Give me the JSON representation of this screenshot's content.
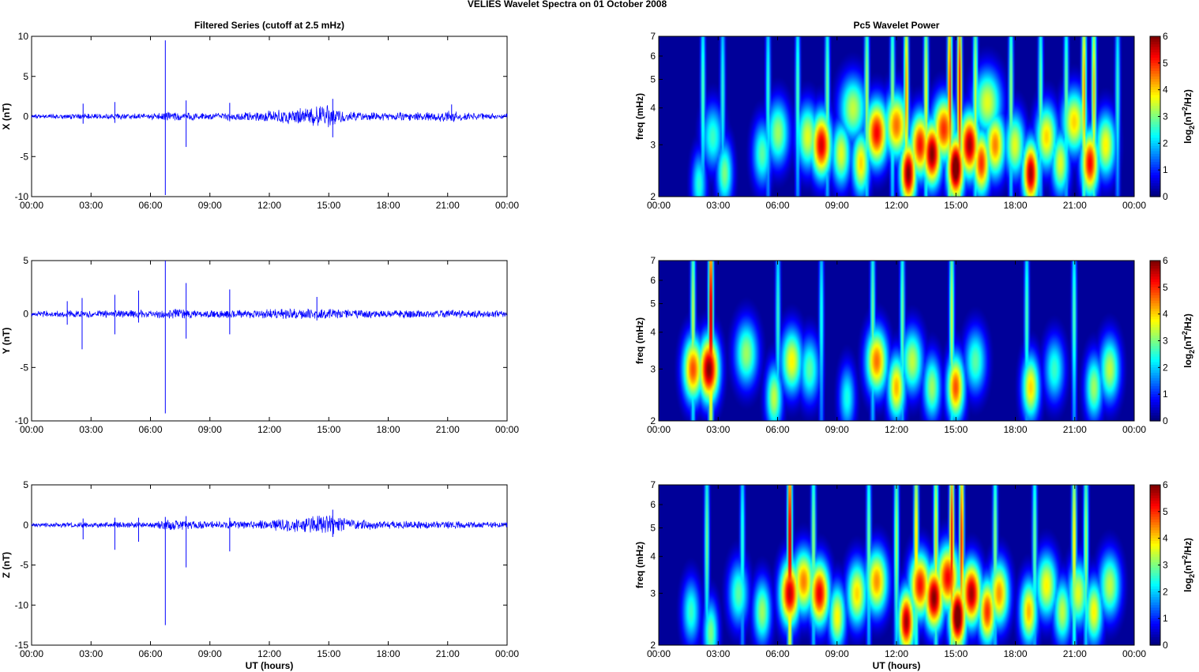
{
  "figure_title": "VELIES Wavelet Spectra on 01 October   2008",
  "chart_data": [
    {
      "type": "line",
      "panel": "filtered-x",
      "title": "Filtered Series (cutoff at 2.5 mHz)",
      "xlabel": "",
      "ylabel": "X (nT)",
      "xlim": [
        0,
        24
      ],
      "ylim": [
        -10,
        10
      ],
      "yticks": [
        -10,
        -5,
        0,
        5,
        10
      ],
      "xticklabels": [
        "00:00",
        "03:00",
        "06:00",
        "09:00",
        "12:00",
        "15:00",
        "18:00",
        "21:00",
        "00:00"
      ],
      "series_color": "#0000ff",
      "envelope": [
        [
          0,
          0.3
        ],
        [
          2,
          0.35
        ],
        [
          4,
          0.35
        ],
        [
          6,
          0.4
        ],
        [
          7,
          0.6
        ],
        [
          8,
          0.5
        ],
        [
          9,
          0.4
        ],
        [
          10,
          0.5
        ],
        [
          11,
          0.6
        ],
        [
          12,
          0.8
        ],
        [
          13,
          1.0
        ],
        [
          14,
          1.1
        ],
        [
          15,
          1.6
        ],
        [
          15.5,
          1.0
        ],
        [
          16,
          0.6
        ],
        [
          18,
          0.5
        ],
        [
          20,
          0.6
        ],
        [
          21,
          0.8
        ],
        [
          22,
          0.5
        ],
        [
          24,
          0.4
        ]
      ],
      "spikes": [
        [
          2.6,
          1.6,
          -0.9
        ],
        [
          4.2,
          1.8,
          -0.8
        ],
        [
          6.75,
          9.5,
          -9.8
        ],
        [
          7.8,
          2.0,
          -3.8
        ],
        [
          10.0,
          1.7,
          -0.6
        ],
        [
          15.2,
          2.2,
          -2.6
        ],
        [
          21.2,
          1.5,
          -0.5
        ]
      ]
    },
    {
      "type": "line",
      "panel": "filtered-y",
      "title": "",
      "xlabel": "",
      "ylabel": "Y (nT)",
      "xlim": [
        0,
        24
      ],
      "ylim": [
        -10,
        5
      ],
      "yticks": [
        -10,
        -5,
        0,
        5
      ],
      "xticklabels": [
        "00:00",
        "03:00",
        "06:00",
        "09:00",
        "12:00",
        "15:00",
        "18:00",
        "21:00",
        "00:00"
      ],
      "series_color": "#0000ff",
      "envelope": [
        [
          0,
          0.25
        ],
        [
          2,
          0.4
        ],
        [
          3,
          0.35
        ],
        [
          6,
          0.4
        ],
        [
          7,
          0.5
        ],
        [
          9,
          0.35
        ],
        [
          11,
          0.45
        ],
        [
          13,
          0.5
        ],
        [
          15,
          0.5
        ],
        [
          18,
          0.35
        ],
        [
          21,
          0.4
        ],
        [
          24,
          0.3
        ]
      ],
      "spikes": [
        [
          1.8,
          1.2,
          -1.0
        ],
        [
          2.55,
          1.5,
          -3.3
        ],
        [
          4.2,
          1.8,
          -1.9
        ],
        [
          5.4,
          2.2,
          -0.8
        ],
        [
          6.75,
          5.0,
          -9.3
        ],
        [
          7.8,
          2.9,
          -2.3
        ],
        [
          10.0,
          2.3,
          -1.9
        ],
        [
          14.4,
          1.6,
          -0.6
        ]
      ]
    },
    {
      "type": "line",
      "panel": "filtered-z",
      "title": "",
      "xlabel": "UT (hours)",
      "ylabel": "Z (nT)",
      "xlim": [
        0,
        24
      ],
      "ylim": [
        -15,
        5
      ],
      "yticks": [
        -15,
        -10,
        -5,
        0,
        5
      ],
      "xticklabels": [
        "00:00",
        "03:00",
        "06:00",
        "09:00",
        "12:00",
        "15:00",
        "18:00",
        "21:00",
        "00:00"
      ],
      "series_color": "#0000ff",
      "envelope": [
        [
          0,
          0.3
        ],
        [
          3,
          0.35
        ],
        [
          6,
          0.4
        ],
        [
          7,
          0.7
        ],
        [
          9,
          0.5
        ],
        [
          11,
          0.5
        ],
        [
          12,
          0.7
        ],
        [
          13,
          0.9
        ],
        [
          14,
          1.0
        ],
        [
          15,
          1.6
        ],
        [
          16,
          0.8
        ],
        [
          18,
          0.5
        ],
        [
          21,
          0.5
        ],
        [
          24,
          0.35
        ]
      ],
      "spikes": [
        [
          2.6,
          0.8,
          -1.8
        ],
        [
          4.2,
          0.9,
          -3.1
        ],
        [
          5.4,
          0.9,
          -2.1
        ],
        [
          6.75,
          1.0,
          -12.5
        ],
        [
          7.8,
          1.1,
          -5.3
        ],
        [
          10.0,
          0.9,
          -3.3
        ],
        [
          15.2,
          1.9,
          -1.5
        ]
      ]
    },
    {
      "type": "heatmap",
      "panel": "wavelet-x",
      "title": "Pc5 Wavelet Power",
      "xlabel": "",
      "ylabel": "freq (mHz)",
      "xlim": [
        0,
        24
      ],
      "ylim": [
        2,
        7
      ],
      "yscale": "log",
      "yticks": [
        2,
        3,
        4,
        5,
        6,
        7
      ],
      "xticklabels": [
        "00:00",
        "03:00",
        "06:00",
        "09:00",
        "12:00",
        "15:00",
        "18:00",
        "21:00",
        "00:00"
      ],
      "colorbar_label": "log2(nT2/Hz)",
      "colorbar_ticks": [
        0,
        1,
        2,
        3,
        4,
        5,
        6
      ],
      "clim": [
        0,
        6
      ],
      "colormap": "jet",
      "blobs": [
        [
          2.0,
          2.2,
          2.5
        ],
        [
          3.3,
          2.4,
          3.0
        ],
        [
          5.2,
          2.8,
          2.8
        ],
        [
          6.0,
          3.3,
          3.2
        ],
        [
          7.5,
          3.2,
          3.6
        ],
        [
          8.2,
          3.0,
          5.5
        ],
        [
          9.2,
          2.8,
          3.6
        ],
        [
          10.2,
          2.6,
          4.0
        ],
        [
          11.0,
          3.3,
          5.3
        ],
        [
          12.0,
          3.5,
          4.6
        ],
        [
          12.6,
          2.4,
          6.0
        ],
        [
          13.2,
          3.0,
          5.2
        ],
        [
          13.8,
          2.8,
          6.0
        ],
        [
          14.4,
          3.4,
          5.0
        ],
        [
          15.0,
          2.5,
          6.5
        ],
        [
          15.7,
          3.0,
          5.8
        ],
        [
          16.3,
          2.6,
          5.0
        ],
        [
          17.0,
          3.0,
          4.5
        ],
        [
          18.0,
          3.0,
          3.6
        ],
        [
          18.8,
          2.4,
          5.8
        ],
        [
          19.6,
          3.2,
          4.0
        ],
        [
          20.3,
          2.6,
          3.6
        ],
        [
          21.0,
          3.6,
          4.0
        ],
        [
          21.8,
          2.6,
          5.3
        ],
        [
          22.6,
          3.0,
          3.8
        ],
        [
          2.7,
          3.2,
          2.6
        ],
        [
          9.8,
          4.0,
          3.4
        ],
        [
          16.6,
          4.2,
          3.6
        ]
      ],
      "streaks": [
        [
          2.2,
          2.8
        ],
        [
          3.2,
          2.5
        ],
        [
          5.5,
          2.6
        ],
        [
          7.0,
          2.8
        ],
        [
          8.5,
          3.0
        ],
        [
          10.5,
          3.4
        ],
        [
          11.8,
          3.2
        ],
        [
          12.5,
          4.5
        ],
        [
          13.5,
          3.8
        ],
        [
          14.7,
          5.2
        ],
        [
          15.2,
          5.5
        ],
        [
          16.0,
          3.6
        ],
        [
          17.8,
          3.2
        ],
        [
          19.3,
          3.0
        ],
        [
          20.6,
          3.0
        ],
        [
          21.5,
          4.5
        ],
        [
          22.0,
          4.2
        ],
        [
          23.2,
          2.6
        ]
      ]
    },
    {
      "type": "heatmap",
      "panel": "wavelet-y",
      "title": "",
      "xlabel": "",
      "ylabel": "freq (mHz)",
      "xlim": [
        0,
        24
      ],
      "ylim": [
        2,
        7
      ],
      "yscale": "log",
      "yticks": [
        2,
        3,
        4,
        5,
        6,
        7
      ],
      "xticklabels": [
        "00:00",
        "03:00",
        "06:00",
        "09:00",
        "12:00",
        "15:00",
        "18:00",
        "21:00",
        "00:00"
      ],
      "colorbar_label": "log2(nT2/Hz)",
      "colorbar_ticks": [
        0,
        1,
        2,
        3,
        4,
        5,
        6
      ],
      "clim": [
        0,
        6
      ],
      "colormap": "jet",
      "blobs": [
        [
          1.7,
          3.0,
          4.8
        ],
        [
          2.5,
          3.0,
          6.0
        ],
        [
          4.4,
          3.4,
          3.2
        ],
        [
          5.8,
          2.4,
          3.4
        ],
        [
          6.7,
          3.2,
          3.8
        ],
        [
          7.6,
          3.0,
          2.8
        ],
        [
          9.5,
          2.4,
          2.4
        ],
        [
          11.0,
          3.2,
          4.6
        ],
        [
          12.0,
          2.6,
          4.2
        ],
        [
          12.8,
          3.2,
          3.4
        ],
        [
          13.8,
          2.6,
          3.2
        ],
        [
          15.0,
          2.6,
          4.8
        ],
        [
          16.0,
          3.2,
          2.8
        ],
        [
          18.8,
          2.6,
          4.0
        ],
        [
          20.0,
          3.0,
          2.6
        ],
        [
          22.0,
          2.6,
          3.2
        ],
        [
          22.8,
          3.0,
          3.4
        ]
      ],
      "streaks": [
        [
          1.7,
          3.5
        ],
        [
          2.6,
          6.0
        ],
        [
          6.0,
          2.6
        ],
        [
          8.2,
          2.5
        ],
        [
          10.8,
          3.0
        ],
        [
          12.3,
          3.0
        ],
        [
          14.8,
          3.6
        ],
        [
          18.6,
          2.8
        ],
        [
          21.0,
          2.8
        ]
      ]
    },
    {
      "type": "heatmap",
      "panel": "wavelet-z",
      "title": "",
      "xlabel": "UT (hours)",
      "ylabel": "freq (mHz)",
      "xlim": [
        0,
        24
      ],
      "ylim": [
        2,
        7
      ],
      "yscale": "log",
      "yticks": [
        2,
        3,
        4,
        5,
        6,
        7
      ],
      "xticklabels": [
        "00:00",
        "03:00",
        "06:00",
        "09:00",
        "12:00",
        "15:00",
        "18:00",
        "21:00",
        "00:00"
      ],
      "colorbar_label": "log2(nT2/Hz)",
      "colorbar_ticks": [
        0,
        1,
        2,
        3,
        4,
        5,
        6
      ],
      "clim": [
        0,
        6
      ],
      "colormap": "jet",
      "blobs": [
        [
          1.6,
          2.6,
          2.6
        ],
        [
          2.6,
          2.2,
          3.0
        ],
        [
          4.0,
          3.0,
          2.8
        ],
        [
          5.2,
          2.6,
          3.2
        ],
        [
          6.6,
          3.0,
          5.6
        ],
        [
          7.3,
          3.3,
          4.5
        ],
        [
          8.1,
          3.0,
          5.4
        ],
        [
          9.0,
          2.5,
          3.8
        ],
        [
          10.0,
          3.0,
          4.0
        ],
        [
          11.0,
          3.3,
          4.4
        ],
        [
          12.5,
          2.4,
          5.8
        ],
        [
          13.2,
          3.2,
          5.2
        ],
        [
          13.9,
          2.9,
          6.0
        ],
        [
          14.6,
          3.4,
          5.3
        ],
        [
          15.1,
          2.5,
          6.5
        ],
        [
          15.8,
          3.0,
          5.8
        ],
        [
          16.6,
          2.6,
          5.0
        ],
        [
          17.2,
          3.0,
          4.4
        ],
        [
          18.7,
          2.6,
          4.2
        ],
        [
          19.6,
          3.2,
          3.8
        ],
        [
          20.4,
          2.6,
          3.4
        ],
        [
          21.2,
          3.0,
          3.6
        ],
        [
          22.0,
          2.6,
          3.8
        ],
        [
          22.8,
          3.2,
          3.4
        ]
      ],
      "streaks": [
        [
          2.4,
          3.0
        ],
        [
          4.2,
          2.6
        ],
        [
          6.6,
          6.0
        ],
        [
          7.8,
          3.2
        ],
        [
          10.6,
          3.0
        ],
        [
          12.0,
          3.4
        ],
        [
          13.0,
          4.2
        ],
        [
          14.0,
          4.0
        ],
        [
          14.8,
          5.4
        ],
        [
          15.3,
          5.2
        ],
        [
          17.0,
          3.2
        ],
        [
          19.0,
          3.0
        ],
        [
          21.0,
          4.0
        ],
        [
          21.6,
          3.4
        ]
      ]
    }
  ]
}
